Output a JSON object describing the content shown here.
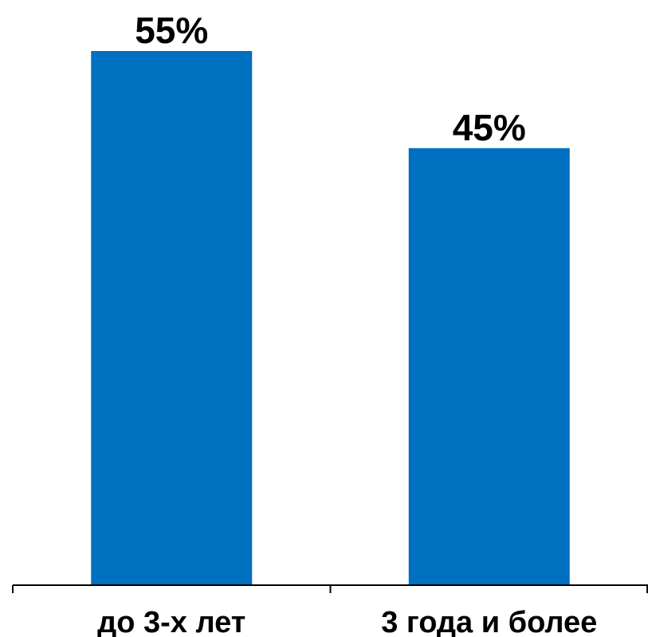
{
  "chart_data": {
    "type": "bar",
    "categories": [
      "до 3-х лет",
      "3 года и более"
    ],
    "values": [
      55,
      45
    ],
    "data_labels": [
      "55%",
      "45%"
    ],
    "ylim": [
      0,
      60
    ],
    "grid": false,
    "legend": "none",
    "title": "",
    "xlabel": "",
    "ylabel": ""
  },
  "colors": {
    "bar": "#0070C0",
    "axis": "#000000",
    "background": "#FFFFFF"
  }
}
